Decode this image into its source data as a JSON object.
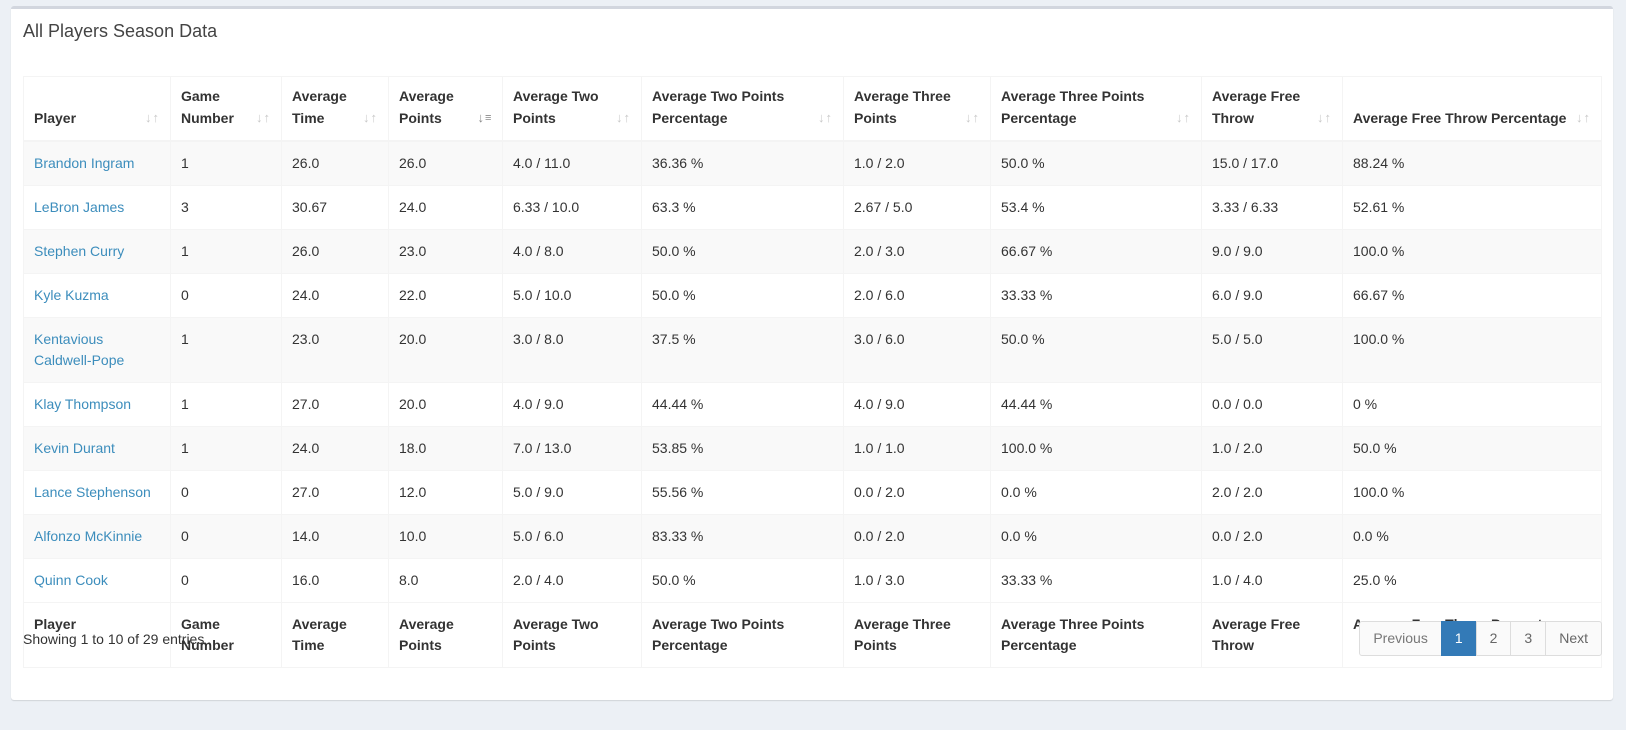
{
  "box": {
    "title": "All Players Season Data"
  },
  "table": {
    "columns": [
      {
        "label": "Player",
        "sort": "none"
      },
      {
        "label": "Game Number",
        "sort": "none"
      },
      {
        "label": "Average Time",
        "sort": "none"
      },
      {
        "label": "Average Points",
        "sort": "desc"
      },
      {
        "label": "Average Two Points",
        "sort": "none"
      },
      {
        "label": "Average Two Points Percentage",
        "sort": "none"
      },
      {
        "label": "Average Three Points",
        "sort": "none"
      },
      {
        "label": "Average Three Points Percentage",
        "sort": "none"
      },
      {
        "label": "Average Free Throw",
        "sort": "none"
      },
      {
        "label": "Average Free Throw Percentage",
        "sort": "none"
      }
    ],
    "rows": [
      [
        "Brandon Ingram",
        "1",
        "26.0",
        "26.0",
        "4.0 / 11.0",
        "36.36 %",
        "1.0 / 2.0",
        "50.0 %",
        "15.0 / 17.0",
        "88.24 %"
      ],
      [
        "LeBron James",
        "3",
        "30.67",
        "24.0",
        "6.33 / 10.0",
        "63.3 %",
        "2.67 / 5.0",
        "53.4 %",
        "3.33 / 6.33",
        "52.61 %"
      ],
      [
        "Stephen Curry",
        "1",
        "26.0",
        "23.0",
        "4.0 / 8.0",
        "50.0 %",
        "2.0 / 3.0",
        "66.67 %",
        "9.0 / 9.0",
        "100.0 %"
      ],
      [
        "Kyle Kuzma",
        "0",
        "24.0",
        "22.0",
        "5.0 / 10.0",
        "50.0 %",
        "2.0 / 6.0",
        "33.33 %",
        "6.0 / 9.0",
        "66.67 %"
      ],
      [
        "Kentavious Caldwell-Pope",
        "1",
        "23.0",
        "20.0",
        "3.0 / 8.0",
        "37.5 %",
        "3.0 / 6.0",
        "50.0 %",
        "5.0 / 5.0",
        "100.0 %"
      ],
      [
        "Klay Thompson",
        "1",
        "27.0",
        "20.0",
        "4.0 / 9.0",
        "44.44 %",
        "4.0 / 9.0",
        "44.44 %",
        "0.0 / 0.0",
        "0 %"
      ],
      [
        "Kevin Durant",
        "1",
        "24.0",
        "18.0",
        "7.0 / 13.0",
        "53.85 %",
        "1.0 / 1.0",
        "100.0 %",
        "1.0 / 2.0",
        "50.0 %"
      ],
      [
        "Lance Stephenson",
        "0",
        "27.0",
        "12.0",
        "5.0 / 9.0",
        "55.56 %",
        "0.0 / 2.0",
        "0.0 %",
        "2.0 / 2.0",
        "100.0 %"
      ],
      [
        "Alfonzo McKinnie",
        "0",
        "14.0",
        "10.0",
        "5.0 / 6.0",
        "83.33 %",
        "0.0 / 2.0",
        "0.0 %",
        "0.0 / 2.0",
        "0.0 %"
      ],
      [
        "Quinn Cook",
        "0",
        "16.0",
        "8.0",
        "2.0 / 4.0",
        "50.0 %",
        "1.0 / 3.0",
        "33.33 %",
        "1.0 / 4.0",
        "25.0 %"
      ]
    ]
  },
  "footer": {
    "info": "Showing 1 to 10 of 29 entries",
    "pagination": {
      "previous": "Previous",
      "pages": [
        "1",
        "2",
        "3"
      ],
      "active": "1",
      "next": "Next"
    }
  },
  "colors": {
    "link": "#3c8dbc",
    "active_page": "#337ab7",
    "background": "#ecf0f5"
  },
  "icons": {
    "sort_none": "sort-both-icon",
    "sort_desc": "sort-desc-icon"
  }
}
